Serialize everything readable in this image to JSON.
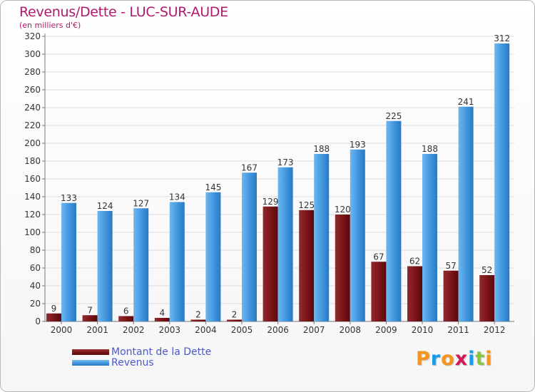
{
  "chart_data": {
    "type": "bar",
    "title": "Revenus/Dette - LUC-SUR-AUDE",
    "subtitle": "(en milliers d'€)",
    "categories": [
      "2000",
      "2001",
      "2002",
      "2003",
      "2004",
      "2005",
      "2006",
      "2007",
      "2008",
      "2009",
      "2010",
      "2011",
      "2012"
    ],
    "series": [
      {
        "name": "Montant de la Dette",
        "color": "#7a1418",
        "values": [
          9,
          7,
          6,
          4,
          2,
          2,
          129,
          125,
          120,
          67,
          62,
          57,
          52
        ]
      },
      {
        "name": "Revenus",
        "color": "#3f96de",
        "values": [
          133,
          124,
          127,
          134,
          145,
          167,
          173,
          188,
          193,
          225,
          188,
          241,
          312
        ]
      }
    ],
    "y_ticks": [
      0,
      20,
      40,
      60,
      80,
      100,
      120,
      140,
      160,
      180,
      200,
      220,
      240,
      260,
      280,
      300,
      320
    ],
    "ylim": [
      0,
      320
    ],
    "grid": true,
    "legend_position": "bottom-left",
    "xlabel": "",
    "ylabel": ""
  },
  "logo": {
    "letters": [
      {
        "char": "P",
        "color": "#f7941d"
      },
      {
        "char": "r",
        "color": "#1a9be6"
      },
      {
        "char": "o",
        "color": "#f7941d"
      },
      {
        "char": "x",
        "color": "#d4165a"
      },
      {
        "char": "i",
        "color": "#1a9be6"
      },
      {
        "char": "t",
        "color": "#8cc63f"
      },
      {
        "char": "i",
        "color": "#f7941d"
      }
    ]
  }
}
